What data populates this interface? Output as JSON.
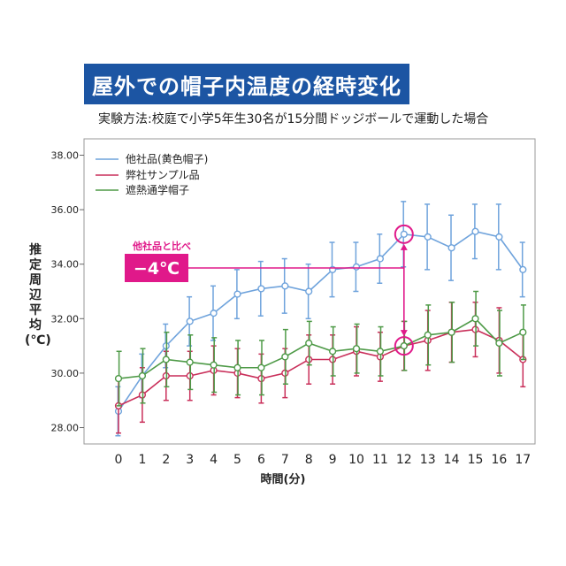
{
  "title": "屋外での帽子内温度の経時変化",
  "subtitle": "実験方法:校庭で小学5年生30名が15分間ドッジボールで運動した場合",
  "annotation": {
    "note": "他社品と比べ",
    "delta": "−4℃"
  },
  "chart_data": {
    "type": "line",
    "ylabel": "推定周辺平均(℃)",
    "xlabel": "時間(分)",
    "ylim": [
      27.4,
      38.6
    ],
    "yticks": [
      "28.00",
      "30.00",
      "32.00",
      "34.00",
      "36.00",
      "38.00"
    ],
    "x": [
      0,
      1,
      2,
      3,
      4,
      5,
      6,
      7,
      8,
      9,
      10,
      11,
      12,
      13,
      14,
      15,
      16,
      17
    ],
    "grid": false,
    "legend": "top-left",
    "series": [
      {
        "name": "他社品(黄色帽子)",
        "color": "#6fa3dc",
        "values": [
          28.6,
          29.9,
          31.0,
          31.9,
          32.2,
          32.9,
          33.1,
          33.2,
          33.0,
          33.8,
          33.9,
          34.2,
          35.1,
          35.0,
          34.6,
          35.2,
          35.0,
          33.8
        ],
        "err": [
          0.9,
          0.8,
          0.8,
          0.9,
          1.0,
          0.9,
          1.0,
          1.0,
          1.0,
          1.0,
          0.9,
          0.9,
          1.2,
          1.2,
          1.2,
          1.0,
          1.2,
          1.0
        ]
      },
      {
        "name": "弊社サンプル品",
        "color": "#c92f5a",
        "values": [
          28.8,
          29.2,
          29.9,
          29.9,
          30.1,
          30.0,
          29.8,
          30.0,
          30.5,
          30.5,
          30.8,
          30.6,
          31.0,
          31.2,
          31.5,
          31.6,
          31.2,
          30.5
        ],
        "err": [
          1.0,
          1.0,
          0.9,
          0.9,
          0.9,
          0.9,
          0.9,
          0.9,
          0.9,
          0.9,
          0.9,
          0.9,
          0.9,
          1.1,
          1.1,
          1.0,
          1.2,
          1.0
        ]
      },
      {
        "name": "遮熱通学帽子",
        "color": "#4e9a47",
        "values": [
          29.8,
          29.9,
          30.5,
          30.4,
          30.3,
          30.2,
          30.2,
          30.6,
          31.1,
          30.8,
          30.9,
          30.8,
          31.0,
          31.4,
          31.5,
          32.0,
          31.1,
          31.5
        ],
        "err": [
          1.0,
          1.0,
          1.0,
          1.0,
          1.0,
          1.0,
          1.0,
          1.0,
          0.8,
          0.9,
          0.9,
          0.9,
          0.9,
          1.1,
          1.1,
          1.0,
          1.2,
          1.0
        ]
      }
    ]
  }
}
